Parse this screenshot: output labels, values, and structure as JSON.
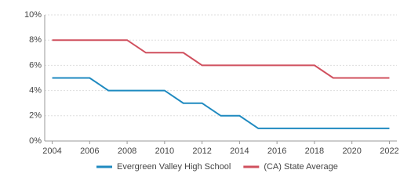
{
  "chart_data": {
    "type": "line",
    "x": [
      2004,
      2005,
      2006,
      2007,
      2008,
      2009,
      2010,
      2011,
      2012,
      2013,
      2014,
      2015,
      2016,
      2017,
      2018,
      2019,
      2020,
      2021,
      2022
    ],
    "series": [
      {
        "name": "Evergreen Valley High School",
        "color": "#1f8ac0",
        "values": [
          5,
          5,
          5,
          4,
          4,
          4,
          4,
          3,
          3,
          2,
          2,
          1,
          1,
          1,
          1,
          1,
          1,
          1,
          1
        ]
      },
      {
        "name": "(CA) State Average",
        "color": "#d0505e",
        "values": [
          8,
          8,
          8,
          8,
          8,
          7,
          7,
          7,
          6,
          6,
          6,
          6,
          6,
          6,
          6,
          5,
          5,
          5,
          5
        ]
      }
    ],
    "xlim": [
      2003.6,
      2022.4
    ],
    "xticks": [
      2004,
      2006,
      2008,
      2010,
      2012,
      2014,
      2016,
      2018,
      2020,
      2022
    ],
    "ylim": [
      0,
      10
    ],
    "yticks": [
      {
        "value": 0,
        "label": "0%"
      },
      {
        "value": 2,
        "label": "2%"
      },
      {
        "value": 4,
        "label": "4%"
      },
      {
        "value": 6,
        "label": "6%"
      },
      {
        "value": 8,
        "label": "8%"
      },
      {
        "value": 10,
        "label": "10%"
      }
    ],
    "grid": true,
    "legend": "bottom"
  }
}
